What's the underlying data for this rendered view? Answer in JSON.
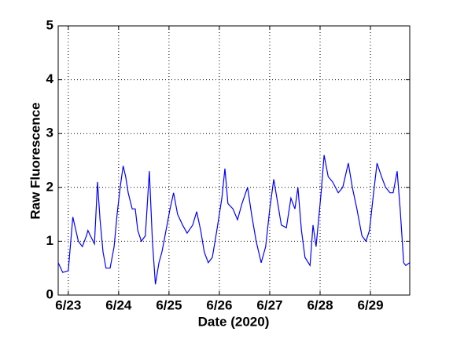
{
  "chart_data": {
    "type": "line",
    "xlabel": "Date (2020)",
    "ylabel": "Raw Fluorescence",
    "xlim": [
      22.8,
      29.78
    ],
    "xticks": [
      {
        "value": 23,
        "label": "6/23"
      },
      {
        "value": 24,
        "label": "6/24"
      },
      {
        "value": 25,
        "label": "6/25"
      },
      {
        "value": 26,
        "label": "6/26"
      },
      {
        "value": 27,
        "label": "6/27"
      },
      {
        "value": 28,
        "label": "6/28"
      },
      {
        "value": 29,
        "label": "6/29"
      }
    ],
    "ylim": [
      0,
      5
    ],
    "yticks": [
      0,
      1,
      2,
      3,
      4,
      5
    ],
    "grid": true,
    "series": [
      {
        "color": "#0000ff",
        "x": [
          22.8,
          22.89,
          23.0,
          23.09,
          23.2,
          23.28,
          23.36,
          23.39,
          23.44,
          23.52,
          23.58,
          23.63,
          23.69,
          23.75,
          23.83,
          23.91,
          23.97,
          24.03,
          24.09,
          24.14,
          24.19,
          24.27,
          24.33,
          24.38,
          24.45,
          24.53,
          24.61,
          24.67,
          24.73,
          24.8,
          24.86,
          24.92,
          25.02,
          25.09,
          25.17,
          25.27,
          25.36,
          25.47,
          25.55,
          25.63,
          25.7,
          25.78,
          25.86,
          25.95,
          26.05,
          26.11,
          26.17,
          26.27,
          26.36,
          26.45,
          26.56,
          26.64,
          26.73,
          26.83,
          26.92,
          27.0,
          27.08,
          27.16,
          27.23,
          27.33,
          27.42,
          27.5,
          27.56,
          27.63,
          27.7,
          27.8,
          27.86,
          27.92,
          28.02,
          28.08,
          28.16,
          28.25,
          28.36,
          28.45,
          28.56,
          28.64,
          28.73,
          28.83,
          28.91,
          28.98,
          29.05,
          29.13,
          29.22,
          29.3,
          29.39,
          29.45,
          29.53,
          29.59,
          29.66,
          29.7,
          29.78
        ],
        "values": [
          0.6,
          0.42,
          0.45,
          1.45,
          1.0,
          0.9,
          1.1,
          1.2,
          1.1,
          0.95,
          2.1,
          1.4,
          0.8,
          0.5,
          0.5,
          0.9,
          1.5,
          2.0,
          2.4,
          2.2,
          1.9,
          1.6,
          1.6,
          1.2,
          1.0,
          1.1,
          2.3,
          1.0,
          0.2,
          0.6,
          0.8,
          1.1,
          1.6,
          1.9,
          1.5,
          1.3,
          1.15,
          1.3,
          1.55,
          1.2,
          0.8,
          0.6,
          0.7,
          1.2,
          1.8,
          2.35,
          1.7,
          1.6,
          1.4,
          1.7,
          2.0,
          1.5,
          1.0,
          0.6,
          0.9,
          1.6,
          2.15,
          1.7,
          1.3,
          1.25,
          1.8,
          1.6,
          2.0,
          1.2,
          0.7,
          0.55,
          1.3,
          0.9,
          1.9,
          2.6,
          2.2,
          2.1,
          1.9,
          2.0,
          2.45,
          2.0,
          1.6,
          1.1,
          1.0,
          1.2,
          1.8,
          2.45,
          2.2,
          2.0,
          1.9,
          1.9,
          2.3,
          1.6,
          0.6,
          0.55,
          0.6
        ]
      }
    ]
  }
}
